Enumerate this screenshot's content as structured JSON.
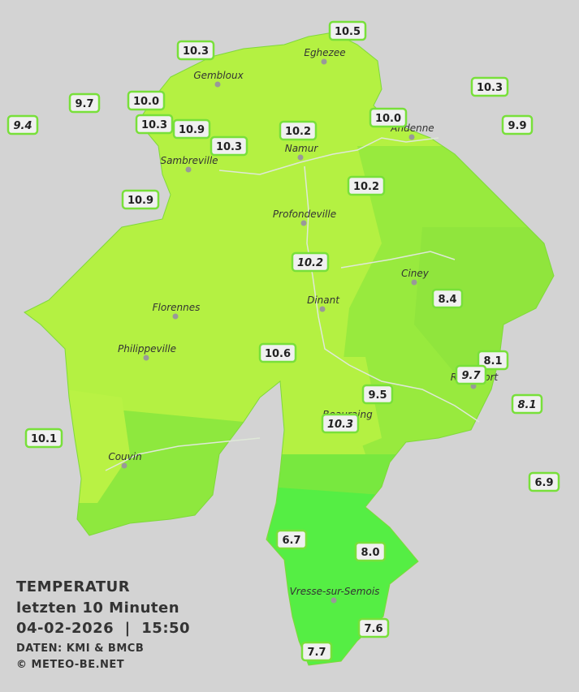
{
  "map": {
    "legend": {
      "title": "TEMPERATUR",
      "period": "letzten 10 Minuten",
      "timestamp": "04-02-2026  |  15:50",
      "source": "DATEN: KMI & BMCB",
      "copyright": "© METEO-BE.NET"
    },
    "cities": [
      "Eghezee",
      "Gembloux",
      "Andenne",
      "Namur",
      "Sambreville",
      "Profondeville",
      "Ciney",
      "Dinant",
      "Florennes",
      "Philippeville",
      "Rochefort",
      "Beauraing",
      "Couvin",
      "Vresse-sur-Semois"
    ],
    "stations": [
      {
        "label": "10.5",
        "italic": false
      },
      {
        "label": "10.3",
        "italic": false
      },
      {
        "label": "10.3",
        "italic": false
      },
      {
        "label": "9.7",
        "italic": false
      },
      {
        "label": "10.0",
        "italic": false
      },
      {
        "label": "9.4",
        "italic": true
      },
      {
        "label": "10.3",
        "italic": false
      },
      {
        "label": "10.9",
        "italic": false
      },
      {
        "label": "10.2",
        "italic": false
      },
      {
        "label": "10.0",
        "italic": false
      },
      {
        "label": "9.9",
        "italic": false
      },
      {
        "label": "10.3",
        "italic": false
      },
      {
        "label": "10.2",
        "italic": false
      },
      {
        "label": "10.9",
        "italic": false
      },
      {
        "label": "10.2",
        "italic": true
      },
      {
        "label": "8.4",
        "italic": false
      },
      {
        "label": "10.6",
        "italic": false
      },
      {
        "label": "8.1",
        "italic": false
      },
      {
        "label": "9.7",
        "italic": true
      },
      {
        "label": "8.1",
        "italic": true
      },
      {
        "label": "9.5",
        "italic": false
      },
      {
        "label": "10.3",
        "italic": true
      },
      {
        "label": "10.1",
        "italic": false
      },
      {
        "label": "6.9",
        "italic": false
      },
      {
        "label": "6.7",
        "italic": false
      },
      {
        "label": "8.0",
        "italic": false
      },
      {
        "label": "7.6",
        "italic": false
      },
      {
        "label": "7.7",
        "italic": false
      }
    ]
  }
}
